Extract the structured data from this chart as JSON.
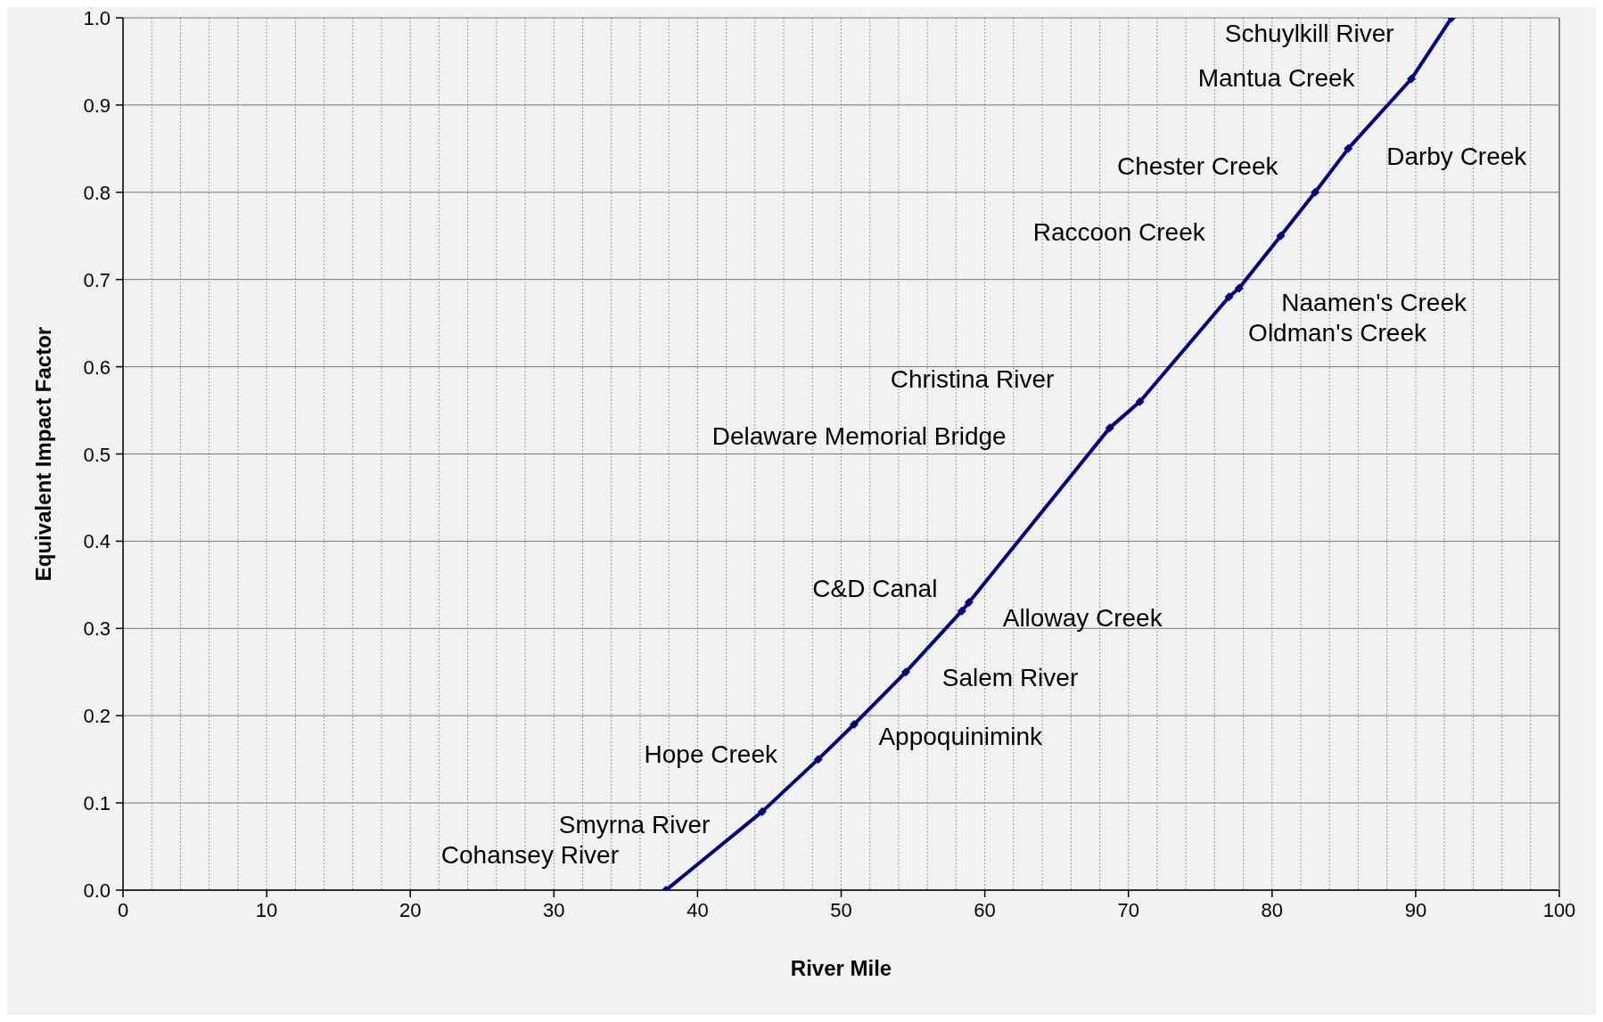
{
  "chart_data": {
    "type": "line",
    "xlabel": "River Mile",
    "ylabel": "Equivalent Impact Factor",
    "x": [
      37.8,
      44.5,
      48.4,
      50.9,
      54.5,
      58.4,
      58.9,
      68.7,
      70.8,
      77.0,
      77.7,
      80.6,
      83.0,
      85.3,
      89.7,
      92.5
    ],
    "series": [
      {
        "color": "#000080",
        "values": [
          0,
          0.09,
          0.15,
          0.19,
          0.25,
          0.32,
          0.33,
          0.53,
          0.56,
          0.68,
          0.69,
          0.75,
          0.8,
          0.85,
          0.93,
          1.0
        ]
      }
    ],
    "xlim": [
      0,
      100
    ],
    "xticks": [
      0,
      {
        "value": 2,
        "label": null
      },
      {
        "value": 4,
        "label": null
      },
      {
        "value": 6,
        "label": null
      },
      {
        "value": 8,
        "label": null
      },
      10,
      {
        "value": 12,
        "label": null
      },
      {
        "value": 14,
        "label": null
      },
      {
        "value": 16,
        "label": null
      },
      {
        "value": 18,
        "label": null
      },
      20,
      {
        "value": 22,
        "label": null
      },
      {
        "value": 24,
        "label": null
      },
      {
        "value": 26,
        "label": null
      },
      {
        "value": 28,
        "label": null
      },
      30,
      {
        "value": 32,
        "label": null
      },
      {
        "value": 34,
        "label": null
      },
      {
        "value": 36,
        "label": null
      },
      {
        "value": 38,
        "label": null
      },
      40,
      {
        "value": 42,
        "label": null
      },
      {
        "value": 44,
        "label": null
      },
      {
        "value": 46,
        "label": null
      },
      {
        "value": 48,
        "label": null
      },
      50,
      {
        "value": 52,
        "label": null
      },
      {
        "value": 54,
        "label": null
      },
      {
        "value": 56,
        "label": null
      },
      {
        "value": 58,
        "label": null
      },
      60,
      {
        "value": 62,
        "label": null
      },
      {
        "value": 64,
        "label": null
      },
      {
        "value": 66,
        "label": null
      },
      {
        "value": 68,
        "label": null
      },
      70,
      {
        "value": 72,
        "label": null
      },
      {
        "value": 74,
        "label": null
      },
      {
        "value": 76,
        "label": null
      },
      {
        "value": 78,
        "label": null
      },
      80,
      {
        "value": 82,
        "label": null
      },
      {
        "value": 84,
        "label": null
      },
      {
        "value": 86,
        "label": null
      },
      {
        "value": 88,
        "label": null
      },
      90,
      {
        "value": 92,
        "label": null
      },
      {
        "value": 94,
        "label": null
      },
      {
        "value": 96,
        "label": null
      },
      {
        "value": 98,
        "label": null
      },
      100
    ],
    "ylim": [
      0,
      1
    ],
    "yticks": [
      {
        "value": 0,
        "label": "0.0"
      },
      {
        "value": 0.1,
        "label": "0.1"
      },
      {
        "value": 0.2,
        "label": "0.2"
      },
      {
        "value": 0.3,
        "label": "0.3"
      },
      {
        "value": 0.4,
        "label": "0.4"
      },
      {
        "value": 0.5,
        "label": "0.5"
      },
      {
        "value": 0.6,
        "label": "0.6"
      },
      {
        "value": 0.7,
        "label": "0.7"
      },
      {
        "value": 0.8,
        "label": "0.8"
      },
      {
        "value": 0.9,
        "label": "0.9"
      },
      {
        "value": 1,
        "label": "1.0"
      }
    ],
    "grid": true,
    "marker": "diamond",
    "line_style": "solid",
    "annotations": [
      {
        "text": "Cohansey River",
        "x": 37.8,
        "y": 0
      },
      {
        "text": "Smyrna River",
        "x": 44.5,
        "y": 0.09
      },
      {
        "text": "Hope Creek",
        "x": 48.4,
        "y": 0.15
      },
      {
        "text": "Appoquinimink",
        "x": 50.9,
        "y": 0.19
      },
      {
        "text": "Salem River",
        "x": 54.5,
        "y": 0.25
      },
      {
        "text": "C&D Canal",
        "x": 58.4,
        "y": 0.32
      },
      {
        "text": "Alloway Creek",
        "x": 58.9,
        "y": 0.33
      },
      "Delaware Memorial Bridge",
      "Christina River",
      {
        "text": "Oldman's Creek",
        "x": 77.0,
        "y": 0.68
      },
      {
        "text": "Naamen's Creek",
        "x": 77.7,
        "y": 0.69
      },
      "Raccoon Creek",
      {
        "text": "Chester Creek",
        "x": 83.0,
        "y": 0.8
      },
      {
        "text": "Darby Creek",
        "x": 85.3,
        "y": 0.85
      },
      {
        "text": "Mantua Creek",
        "x": 89.7,
        "y": 0.93
      },
      {
        "text": "Schuylkill River",
        "x": 92.5,
        "y": 1.0
      }
    ]
  }
}
